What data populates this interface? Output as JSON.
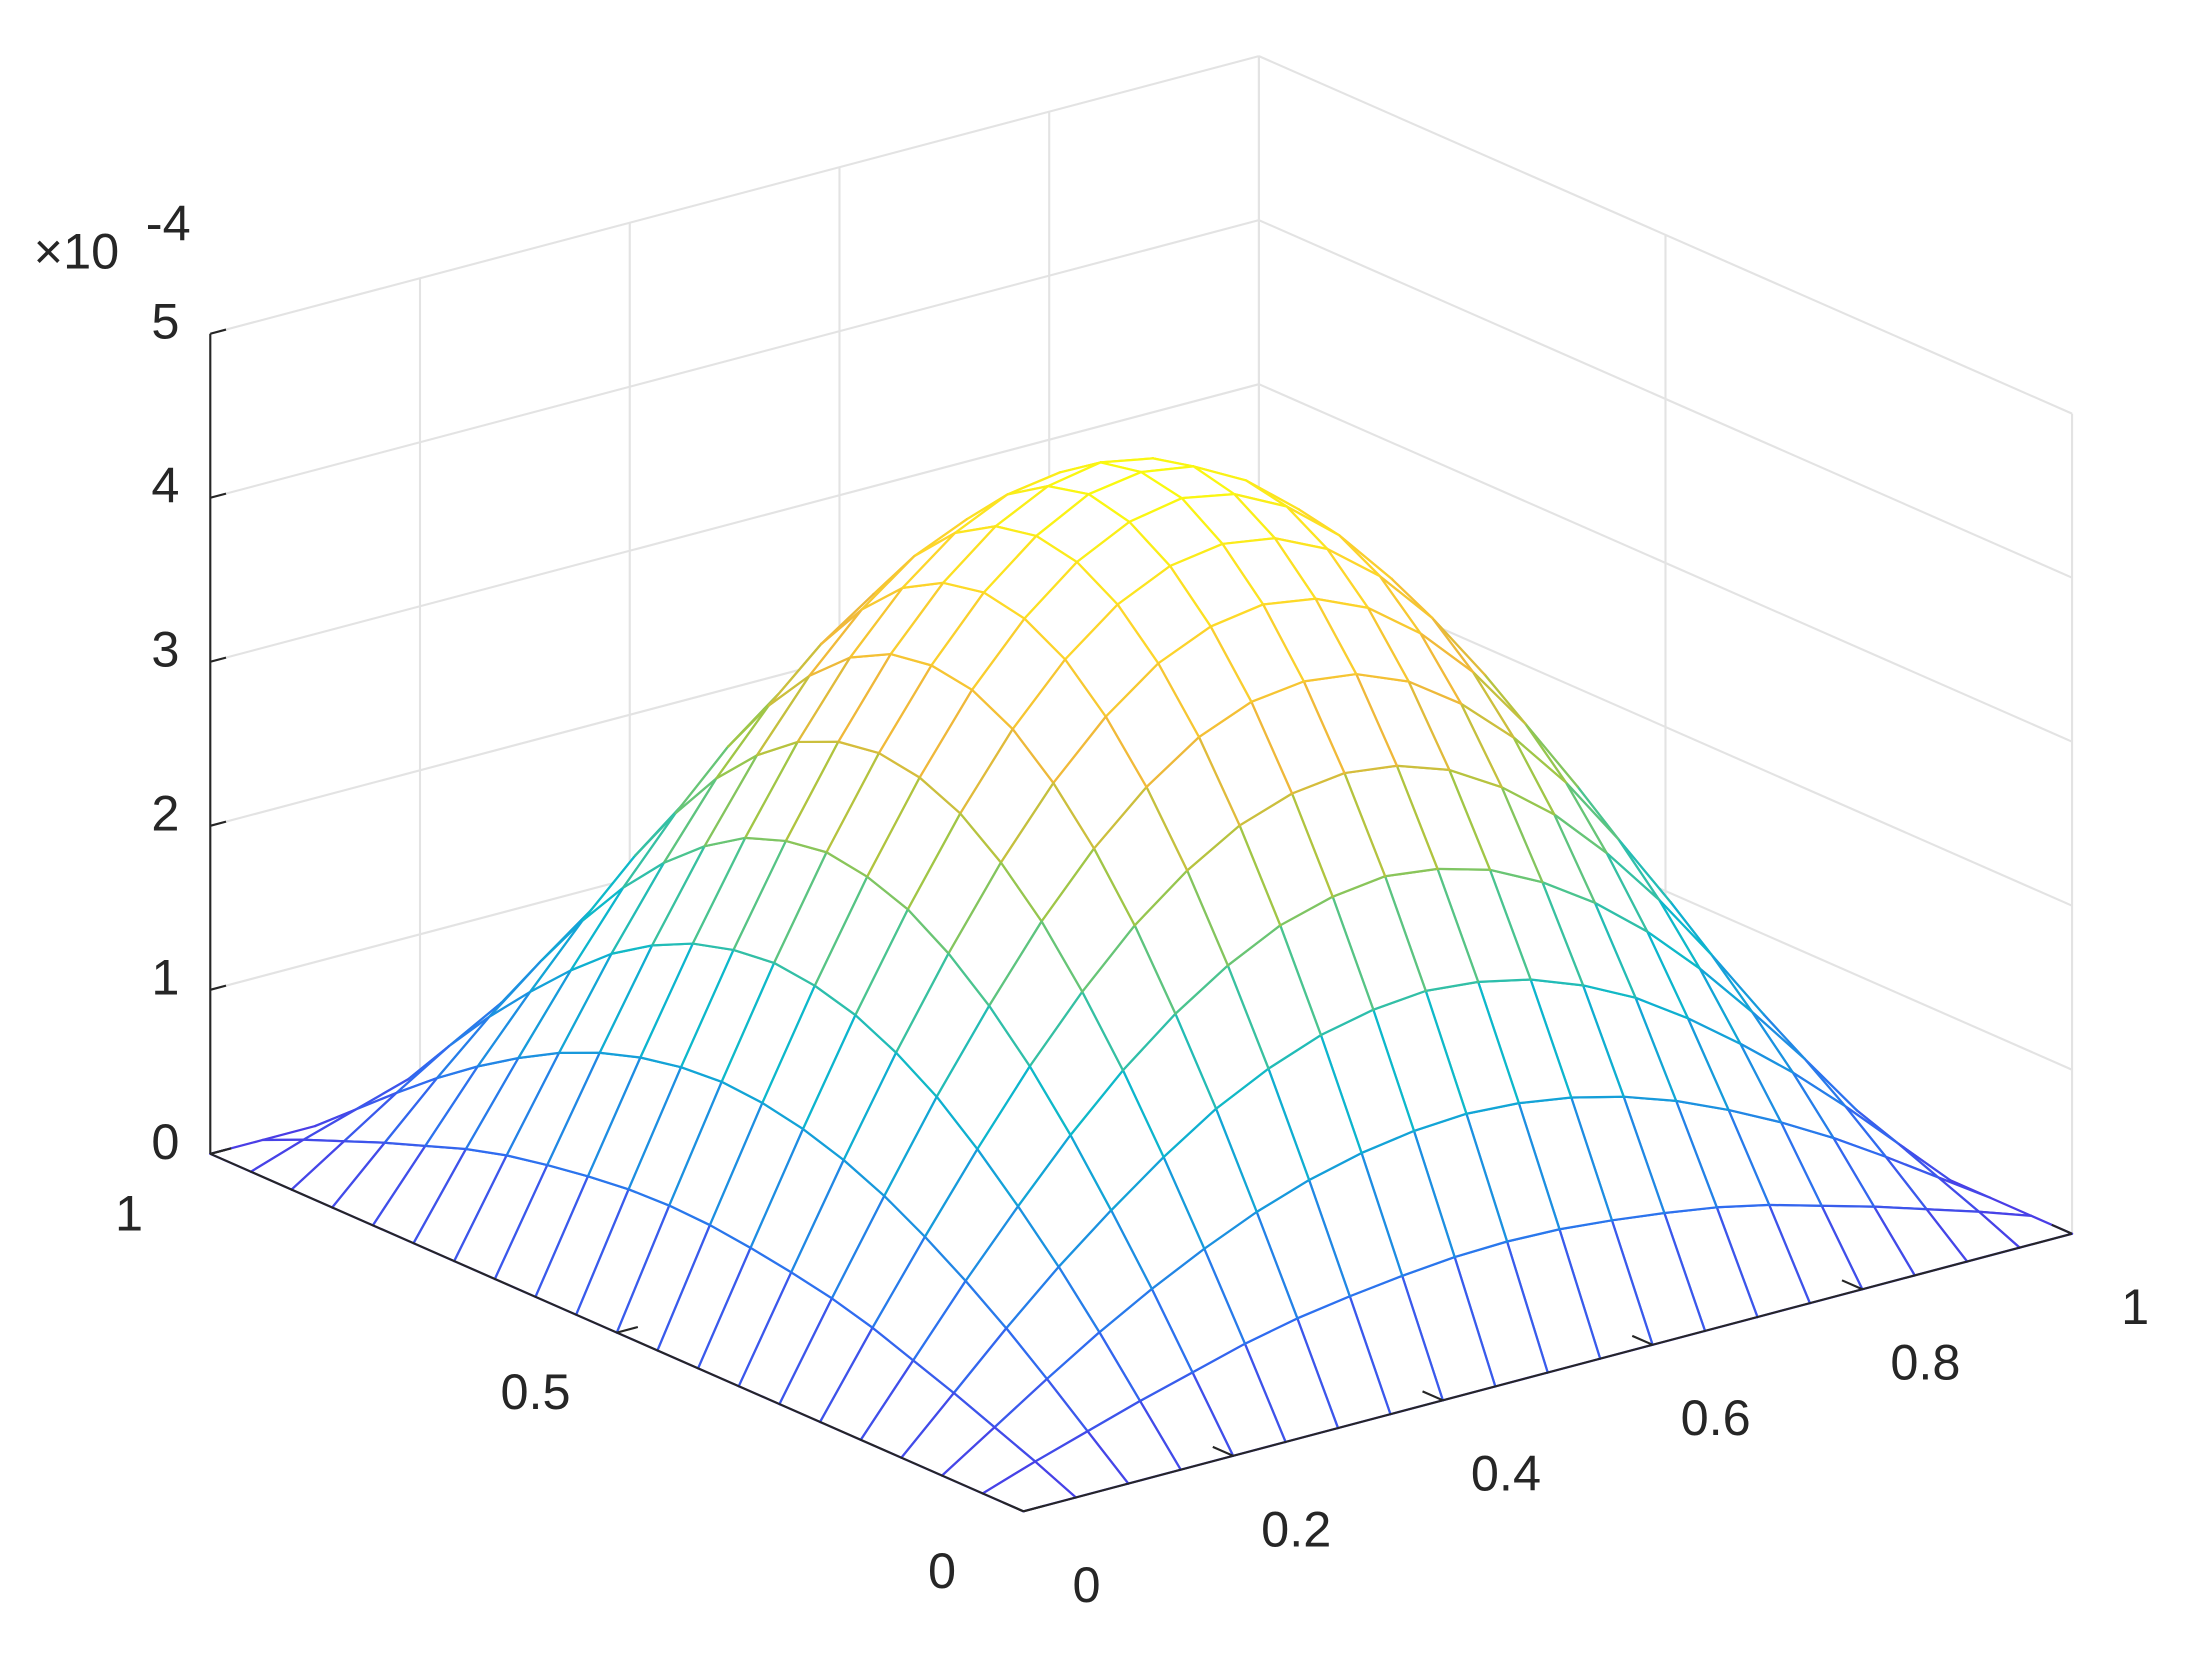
{
  "chart_data": {
    "type": "surface",
    "x": [
      0,
      0.05,
      0.1,
      0.15,
      0.2,
      0.25,
      0.3,
      0.35,
      0.4,
      0.45,
      0.5,
      0.55,
      0.6,
      0.65,
      0.7,
      0.75,
      0.8,
      0.85,
      0.9,
      0.95,
      1
    ],
    "y": [
      0,
      0.05,
      0.1,
      0.15,
      0.2,
      0.25,
      0.3,
      0.35,
      0.4,
      0.45,
      0.5,
      0.55,
      0.6,
      0.65,
      0.7,
      0.75,
      0.8,
      0.85,
      0.9,
      0.95,
      1
    ],
    "z": [
      [
        0,
        0,
        0,
        0,
        0,
        0,
        0,
        0,
        0,
        0,
        0,
        0,
        0,
        0,
        0,
        0,
        0,
        0,
        0,
        0,
        0
      ],
      [
        0,
        0.11,
        0.21,
        0.31,
        0.4,
        0.49,
        0.56,
        0.61,
        0.65,
        0.68,
        0.69,
        0.68,
        0.65,
        0.61,
        0.56,
        0.49,
        0.4,
        0.31,
        0.21,
        0.11,
        0
      ],
      [
        0,
        0.21,
        0.42,
        0.62,
        0.8,
        0.96,
        1.1,
        1.21,
        1.29,
        1.34,
        1.36,
        1.34,
        1.29,
        1.21,
        1.1,
        0.96,
        0.8,
        0.62,
        0.42,
        0.21,
        0
      ],
      [
        0,
        0.31,
        0.62,
        0.91,
        1.17,
        1.41,
        1.62,
        1.78,
        1.9,
        1.97,
        2,
        1.97,
        1.9,
        1.78,
        1.62,
        1.41,
        1.17,
        0.91,
        0.62,
        0.31,
        0
      ],
      [
        0,
        0.4,
        0.8,
        1.17,
        1.52,
        1.83,
        2.09,
        2.3,
        2.46,
        2.55,
        2.59,
        2.55,
        2.46,
        2.3,
        2.09,
        1.83,
        1.52,
        1.17,
        0.8,
        0.4,
        0
      ],
      [
        0,
        0.49,
        0.96,
        1.41,
        1.83,
        2.2,
        2.52,
        2.77,
        2.96,
        3.07,
        3.11,
        3.07,
        2.96,
        2.77,
        2.52,
        2.2,
        1.83,
        1.41,
        0.96,
        0.49,
        0
      ],
      [
        0,
        0.56,
        1.1,
        1.62,
        2.09,
        2.52,
        2.88,
        3.17,
        3.39,
        3.52,
        3.56,
        3.52,
        3.39,
        3.17,
        2.88,
        2.52,
        2.09,
        1.62,
        1.1,
        0.56,
        0
      ],
      [
        0,
        0.61,
        1.21,
        1.78,
        2.3,
        2.77,
        3.17,
        3.49,
        3.73,
        3.87,
        3.92,
        3.87,
        3.73,
        3.49,
        3.17,
        2.77,
        2.3,
        1.78,
        1.21,
        0.61,
        0
      ],
      [
        0,
        0.65,
        1.29,
        1.9,
        2.46,
        2.96,
        3.39,
        3.73,
        3.98,
        4.13,
        4.18,
        4.13,
        3.98,
        3.73,
        3.39,
        2.96,
        2.46,
        1.9,
        1.29,
        0.65,
        0
      ],
      [
        0,
        0.68,
        1.34,
        1.97,
        2.55,
        3.07,
        3.52,
        3.87,
        4.13,
        4.29,
        4.35,
        4.29,
        4.13,
        3.87,
        3.52,
        3.07,
        2.55,
        1.97,
        1.34,
        0.68,
        0
      ],
      [
        0,
        0.69,
        1.36,
        2,
        2.59,
        3.11,
        3.56,
        3.92,
        4.18,
        4.35,
        4.4,
        4.35,
        4.18,
        3.92,
        3.56,
        3.11,
        2.59,
        2,
        1.36,
        0.69,
        0
      ],
      [
        0,
        0.68,
        1.34,
        1.97,
        2.55,
        3.07,
        3.52,
        3.87,
        4.13,
        4.29,
        4.35,
        4.29,
        4.13,
        3.87,
        3.52,
        3.07,
        2.55,
        1.97,
        1.34,
        0.68,
        0
      ],
      [
        0,
        0.65,
        1.29,
        1.9,
        2.46,
        2.96,
        3.39,
        3.73,
        3.98,
        4.13,
        4.18,
        4.13,
        3.98,
        3.73,
        3.39,
        2.96,
        2.46,
        1.9,
        1.29,
        0.65,
        0
      ],
      [
        0,
        0.61,
        1.21,
        1.78,
        2.3,
        2.77,
        3.17,
        3.49,
        3.73,
        3.87,
        3.92,
        3.87,
        3.73,
        3.49,
        3.17,
        2.77,
        2.3,
        1.78,
        1.21,
        0.61,
        0
      ],
      [
        0,
        0.56,
        1.1,
        1.62,
        2.09,
        2.52,
        2.88,
        3.17,
        3.39,
        3.52,
        3.56,
        3.52,
        3.39,
        3.17,
        2.88,
        2.52,
        2.09,
        1.62,
        1.1,
        0.56,
        0
      ],
      [
        0,
        0.49,
        0.96,
        1.41,
        1.83,
        2.2,
        2.52,
        2.77,
        2.96,
        3.07,
        3.11,
        3.07,
        2.96,
        2.77,
        2.52,
        2.2,
        1.83,
        1.41,
        0.96,
        0.49,
        0
      ],
      [
        0,
        0.4,
        0.8,
        1.17,
        1.52,
        1.83,
        2.09,
        2.3,
        2.46,
        2.55,
        2.59,
        2.55,
        2.46,
        2.3,
        2.09,
        1.83,
        1.52,
        1.17,
        0.8,
        0.4,
        0
      ],
      [
        0,
        0.31,
        0.62,
        0.91,
        1.17,
        1.41,
        1.62,
        1.78,
        1.9,
        1.97,
        2,
        1.97,
        1.9,
        1.78,
        1.62,
        1.41,
        1.17,
        0.91,
        0.62,
        0.31,
        0
      ],
      [
        0,
        0.21,
        0.42,
        0.62,
        0.8,
        0.96,
        1.1,
        1.21,
        1.29,
        1.34,
        1.36,
        1.34,
        1.29,
        1.21,
        1.1,
        0.96,
        0.8,
        0.62,
        0.42,
        0.21,
        0
      ],
      [
        0,
        0.11,
        0.21,
        0.31,
        0.4,
        0.49,
        0.56,
        0.61,
        0.65,
        0.68,
        0.69,
        0.68,
        0.65,
        0.61,
        0.56,
        0.49,
        0.4,
        0.31,
        0.21,
        0.11,
        0
      ],
      [
        0,
        0,
        0,
        0,
        0,
        0,
        0,
        0,
        0,
        0,
        0,
        0,
        0,
        0,
        0,
        0,
        0,
        0,
        0,
        0,
        0
      ]
    ],
    "xlim": [
      0,
      1
    ],
    "ylim": [
      0,
      1
    ],
    "zlim": [
      0,
      5
    ],
    "xticks": [
      0,
      0.2,
      0.4,
      0.6,
      0.8,
      1
    ],
    "yticks": [
      0,
      0.5,
      1
    ],
    "zticks": [
      0,
      1,
      2,
      3,
      4,
      5
    ],
    "z_multiplier_base": "×10",
    "z_multiplier_exponent": "-4",
    "grid": true,
    "colormap": [
      "#4a3de6",
      "#2f6ef0",
      "#1996de",
      "#0cb8cc",
      "#4cc48e",
      "#a8c640",
      "#f0b83a",
      "#fdd62a",
      "#f9fb0e"
    ]
  }
}
